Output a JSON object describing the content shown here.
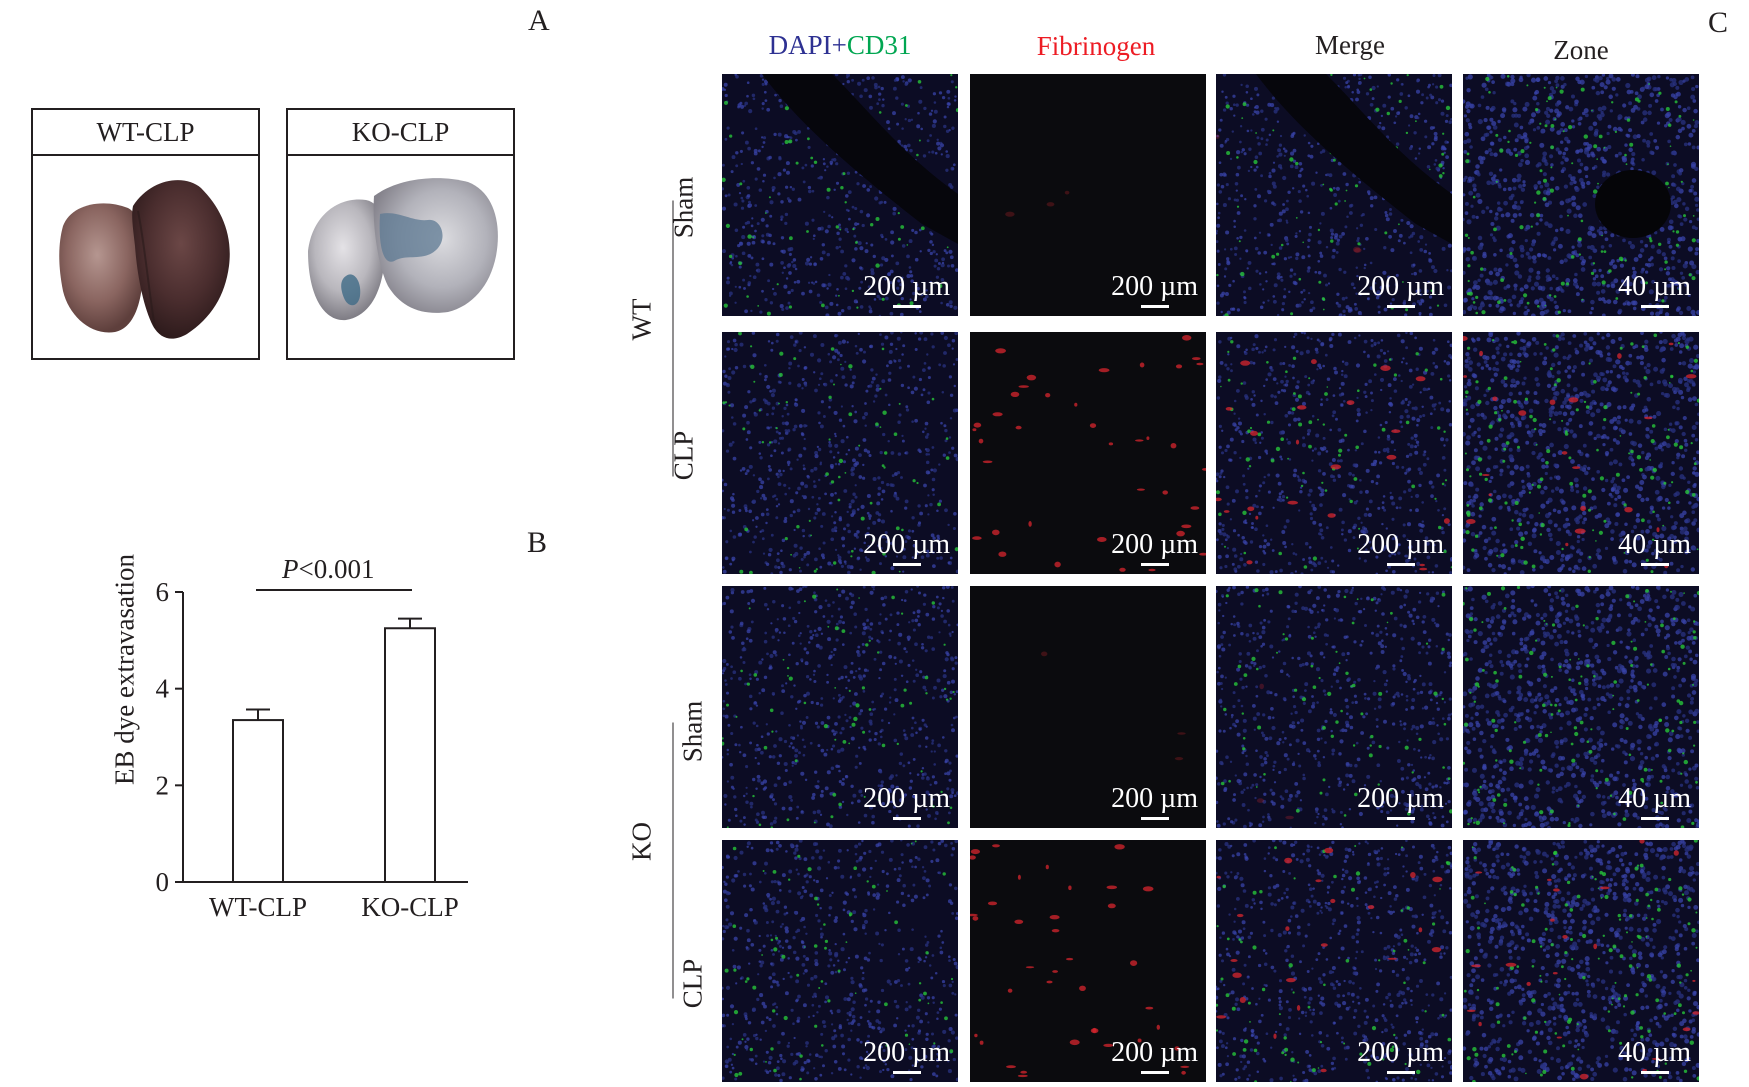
{
  "panel_letters": {
    "a": "A",
    "b": "B",
    "c": "C"
  },
  "panel_a": {
    "boxes": [
      {
        "label": "WT-CLP"
      },
      {
        "label": "KO-CLP"
      }
    ]
  },
  "panel_c": {
    "columns": [
      {
        "label_part1": "DAPI",
        "label_part2": "+",
        "label_part3": "CD31",
        "color1": "#2e3192",
        "color3": "#00a651"
      },
      {
        "label": "Fibrinogen",
        "color": "#ed1c24"
      },
      {
        "label": "Merge"
      },
      {
        "label": "Zone"
      }
    ],
    "groups": [
      "WT",
      "KO"
    ],
    "conditions": [
      "Sham",
      "CLP"
    ],
    "scale_labels": [
      "200 µm",
      "200 µm",
      "200 µm",
      "40 µm"
    ]
  },
  "chart_data": {
    "type": "bar",
    "categories": [
      "WT-CLP",
      "KO-CLP"
    ],
    "values": [
      3.35,
      5.25
    ],
    "errors": [
      0.22,
      0.2
    ],
    "ylabel": "EB dye extravasation",
    "xlabel": "",
    "ylim": [
      0,
      6
    ],
    "yticks": [
      0,
      2,
      4,
      6
    ],
    "annotation_italic": "P",
    "annotation_rest": "<0.001"
  }
}
